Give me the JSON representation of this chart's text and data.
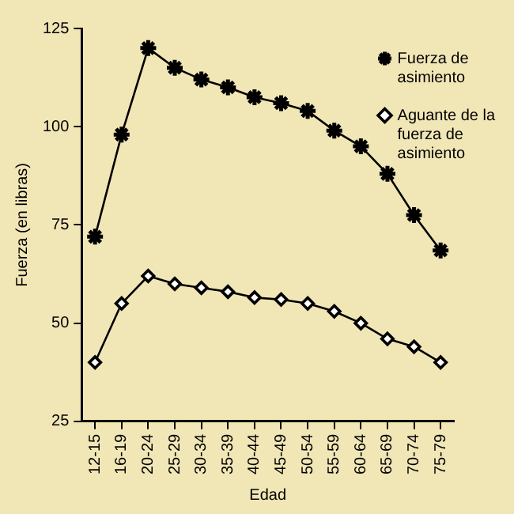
{
  "chart_data": {
    "type": "line",
    "xlabel": "Edad",
    "ylabel": "Fuerza (en libras)",
    "categories": [
      "12-15",
      "16-19",
      "20-24",
      "25-29",
      "30-34",
      "35-39",
      "40-44",
      "45-49",
      "50-54",
      "55-59",
      "60-64",
      "65-69",
      "70-74",
      "75-79"
    ],
    "series": [
      {
        "name": "Fuerza de asimiento",
        "color": "#000000",
        "marker": "cross",
        "values": [
          72,
          98,
          120,
          115,
          112,
          110,
          107.5,
          106,
          104,
          99,
          95,
          88,
          77.5,
          68.5
        ]
      },
      {
        "name": "Aguante de la fuerza de asimiento",
        "color": "#000000",
        "marker": "diamond",
        "values": [
          40,
          55,
          62,
          60,
          59,
          58,
          56.5,
          56,
          55,
          53,
          50,
          46,
          44,
          40
        ]
      }
    ],
    "ylim": [
      25,
      125
    ],
    "yticks": [
      25,
      50,
      75,
      100,
      125
    ],
    "grid": false,
    "legend": "top right",
    "line_style": "solid"
  }
}
